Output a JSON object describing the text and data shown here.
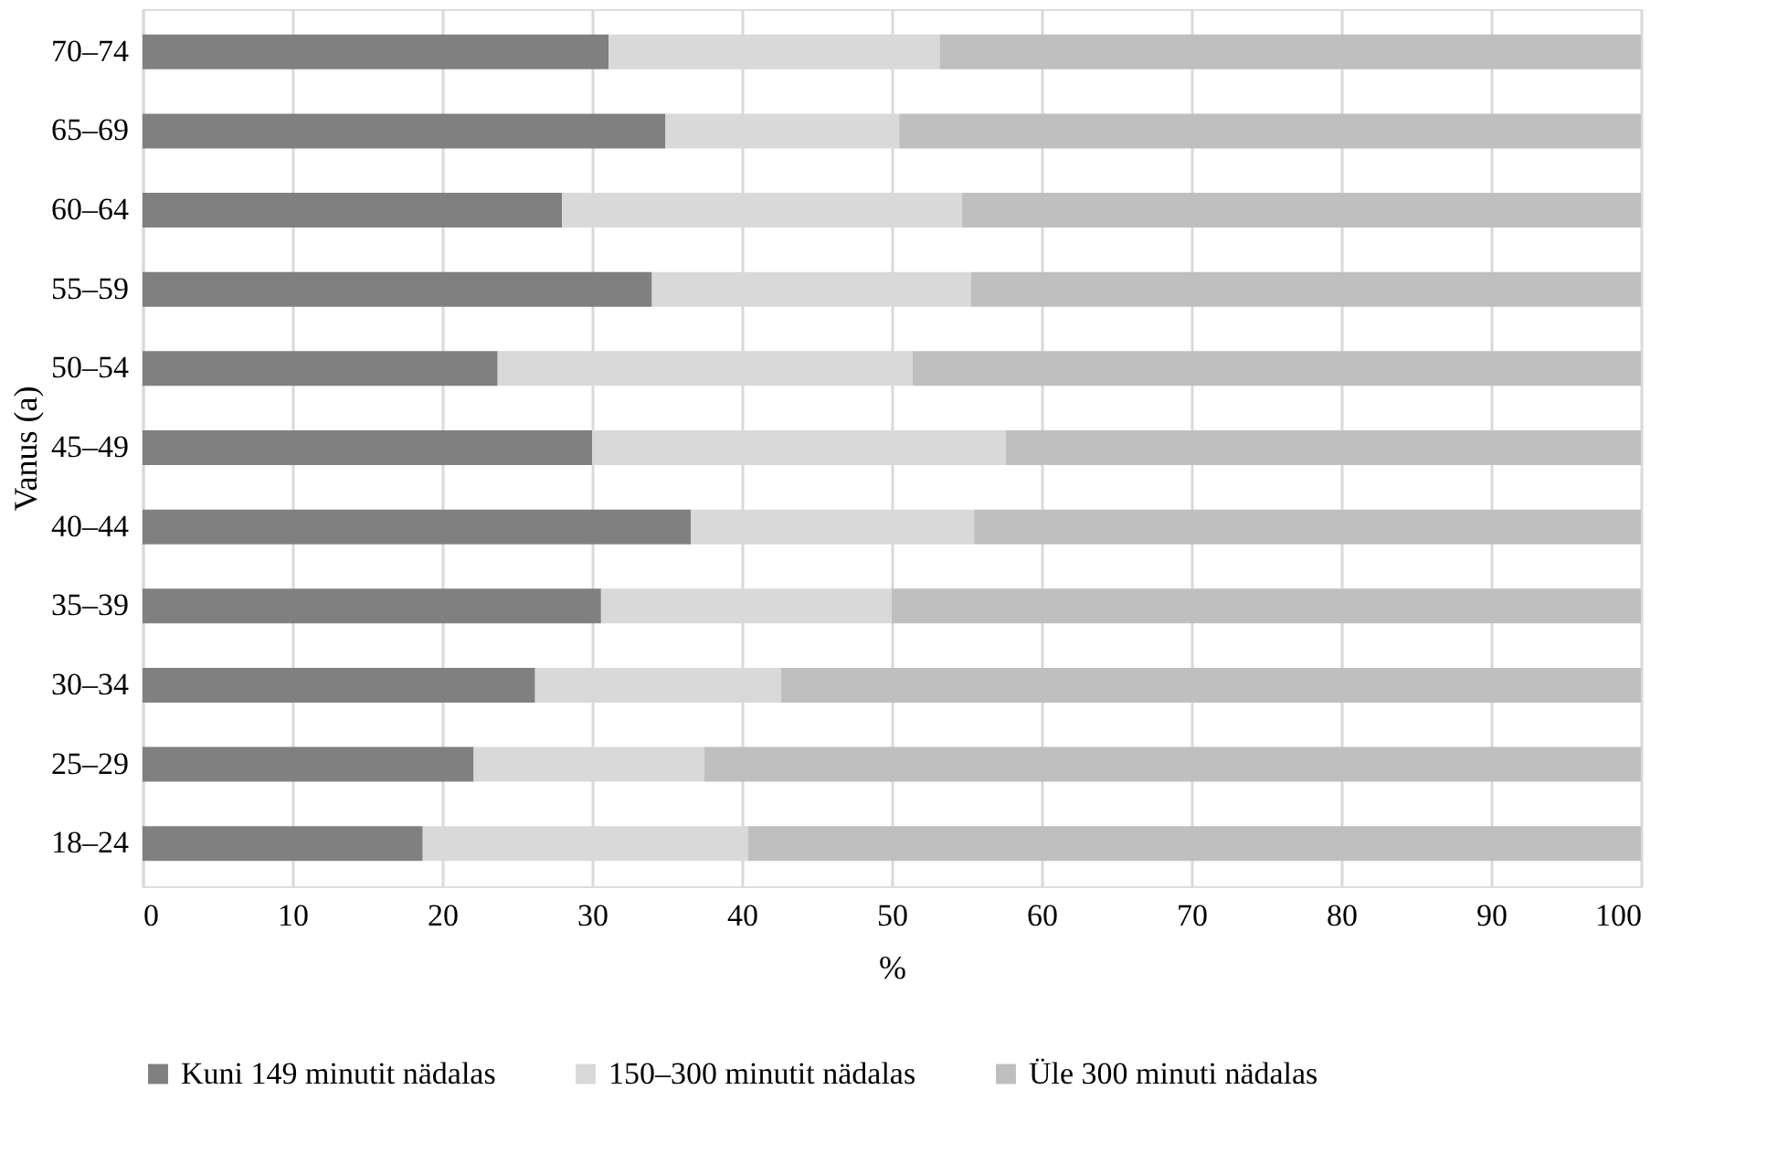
{
  "chart_data": {
    "type": "bar",
    "orientation": "horizontal",
    "stacked": true,
    "ylabel": "Vanus (a)",
    "xlabel": "%",
    "categories": [
      "70–74",
      "65–69",
      "60–64",
      "55–59",
      "50–54",
      "45–49",
      "40–44",
      "35–39",
      "30–34",
      "25–29",
      "18–24"
    ],
    "series": [
      {
        "name": "Kuni 149 minutit nädalas",
        "color": "#808080",
        "values": [
          31.1,
          34.9,
          28.0,
          34.0,
          23.7,
          30.0,
          36.6,
          30.6,
          26.2,
          22.1,
          18.7
        ]
      },
      {
        "name": "150–300 minutit nädalas",
        "color": "#d9d9d9",
        "values": [
          22.1,
          15.6,
          26.7,
          21.3,
          27.7,
          27.6,
          18.9,
          19.4,
          16.4,
          15.4,
          21.7
        ]
      },
      {
        "name": "Üle 300 minuti nädalas",
        "color": "#bfbfbf",
        "values": [
          46.8,
          49.5,
          45.3,
          44.7,
          48.6,
          42.4,
          44.5,
          50.0,
          57.4,
          62.5,
          59.6
        ]
      }
    ],
    "xlim": [
      0,
      100
    ],
    "xticks": [
      0,
      10,
      20,
      30,
      40,
      50,
      60,
      70,
      80,
      90,
      100
    ],
    "grid": "x",
    "legend": "bottom"
  }
}
